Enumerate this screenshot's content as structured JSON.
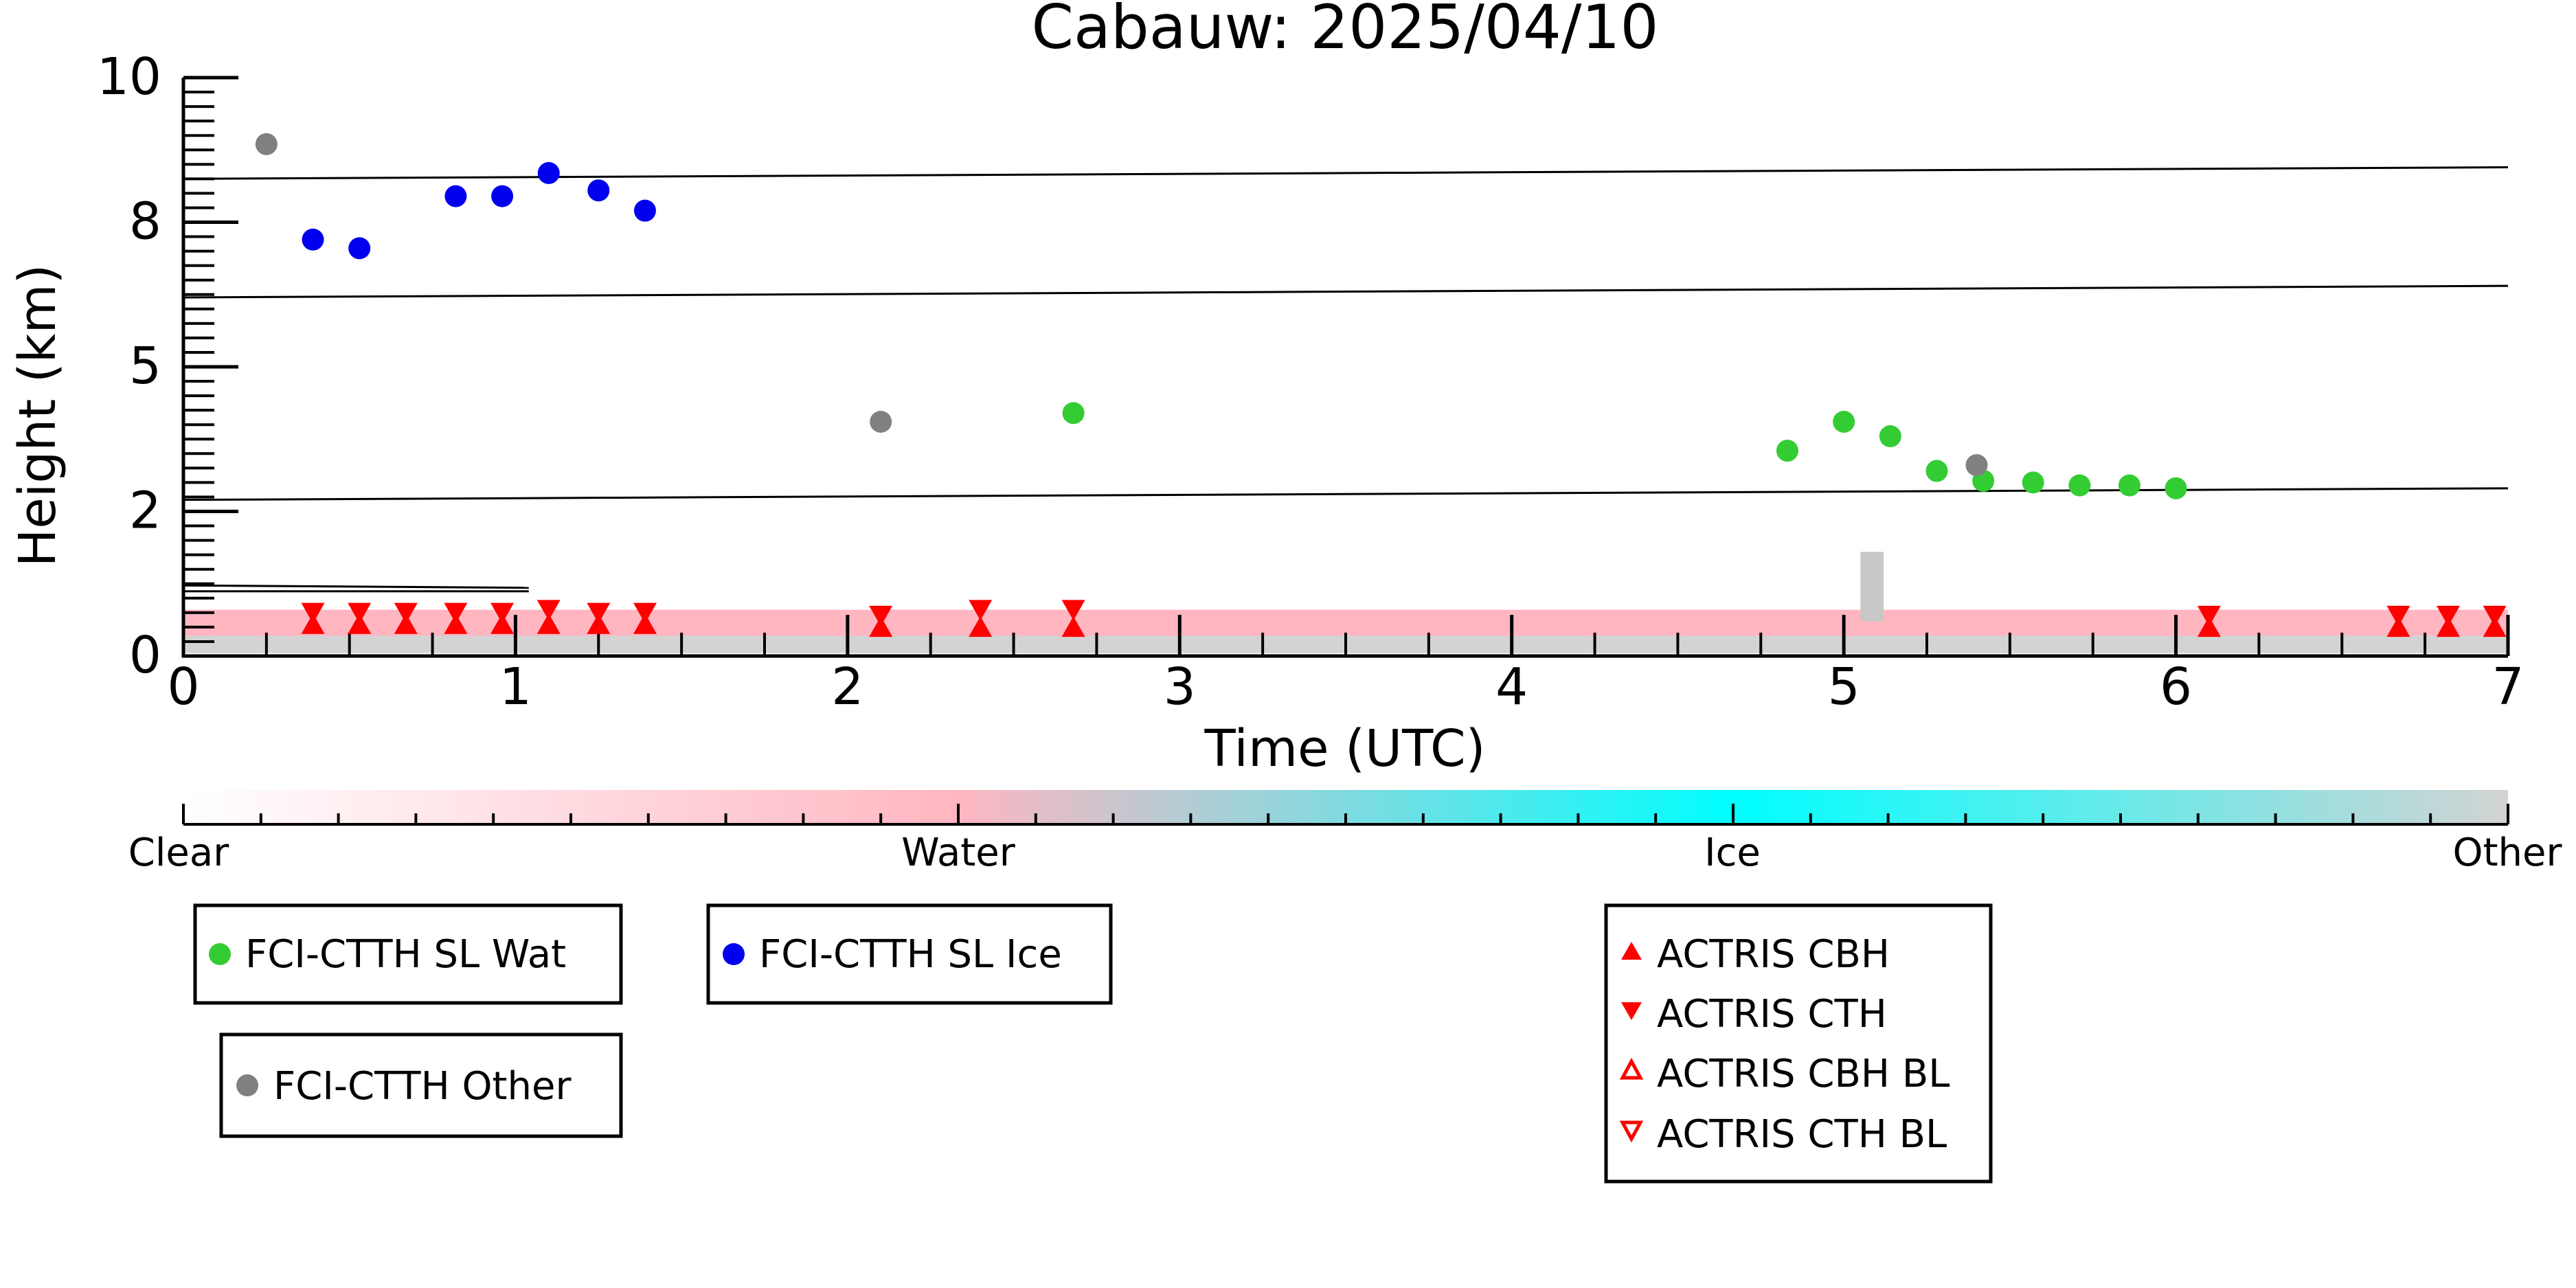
{
  "chart_data": {
    "type": "scatter",
    "title": "Cabauw: 2025/04/10",
    "xlabel": "Time (UTC)",
    "ylabel": "Height (km)",
    "xlim": [
      0,
      7
    ],
    "ylim": [
      0,
      10
    ],
    "x_ticks": [
      0,
      1,
      2,
      3,
      4,
      5,
      6,
      7
    ],
    "x_tick_labels": [
      "0",
      "1",
      "2",
      "3",
      "4",
      "5",
      "6",
      "7"
    ],
    "y_ticks": [
      0,
      2.5,
      5,
      7.5,
      10
    ],
    "y_tick_labels": [
      "0",
      "2",
      "5",
      "8",
      "10"
    ],
    "grid": false,
    "reference_lines": [
      {
        "x": [
          0,
          7
        ],
        "y": [
          8.25,
          8.45
        ]
      },
      {
        "x": [
          0,
          7
        ],
        "y": [
          6.2,
          6.4
        ]
      },
      {
        "x": [
          0,
          7
        ],
        "y": [
          2.7,
          2.9
        ]
      },
      {
        "x": [
          0,
          1.04
        ],
        "y": [
          1.22,
          1.18
        ]
      },
      {
        "x": [
          0,
          1.04
        ],
        "y": [
          1.12,
          1.12
        ]
      }
    ],
    "series": [
      {
        "name": "FCI-CTTH SL Wat",
        "marker": "circle",
        "color": "#33cc33",
        "x": [
          2.68,
          4.83,
          5.0,
          5.14,
          5.28,
          5.42,
          5.57,
          5.71,
          5.86,
          6.0
        ],
        "y": [
          4.2,
          3.55,
          4.05,
          3.8,
          3.2,
          3.03,
          3.0,
          2.95,
          2.95,
          2.9
        ]
      },
      {
        "name": "FCI-CTTH SL Ice",
        "marker": "circle",
        "color": "#0000ee",
        "x": [
          0.39,
          0.53,
          0.82,
          0.96,
          1.1,
          1.25,
          1.39
        ],
        "y": [
          7.2,
          7.05,
          7.95,
          7.95,
          8.35,
          8.05,
          7.7
        ]
      },
      {
        "name": "FCI-CTTH Other",
        "marker": "circle",
        "color": "#808080",
        "x": [
          0.25,
          2.1,
          5.4
        ],
        "y": [
          8.85,
          4.05,
          3.3
        ]
      },
      {
        "name": "ACTRIS CBH",
        "marker": "triangle-up",
        "color": "#ff0000",
        "x": [
          0.39,
          0.53,
          0.67,
          0.82,
          0.96,
          1.1,
          1.25,
          1.39,
          2.1,
          2.4,
          2.68,
          6.1,
          6.67,
          6.82,
          6.96
        ],
        "y": [
          0.5,
          0.5,
          0.5,
          0.5,
          0.5,
          0.5,
          0.5,
          0.5,
          0.45,
          0.45,
          0.45,
          0.45,
          0.45,
          0.45,
          0.45
        ]
      },
      {
        "name": "ACTRIS CTH",
        "marker": "triangle-down",
        "color": "#ff0000",
        "x": [
          0.39,
          0.53,
          0.67,
          0.82,
          0.96,
          1.1,
          1.25,
          1.39,
          2.1,
          2.4,
          2.68,
          6.1,
          6.67,
          6.82,
          6.96
        ],
        "y": [
          0.8,
          0.8,
          0.8,
          0.8,
          0.8,
          0.85,
          0.8,
          0.8,
          0.75,
          0.85,
          0.85,
          0.75,
          0.75,
          0.75,
          0.75
        ]
      },
      {
        "name": "ACTRIS CBH BL",
        "marker": "triangle-up-open",
        "color": "#ff0000",
        "x": [],
        "y": []
      },
      {
        "name": "ACTRIS CTH BL",
        "marker": "triangle-down-open",
        "color": "#ff0000",
        "x": [],
        "y": []
      }
    ],
    "background_layers": {
      "water_band": {
        "color": "#ffb6c1",
        "x": [
          0,
          7
        ],
        "y": [
          0.35,
          0.8
        ]
      },
      "other_band": {
        "color": "#d3d3d3",
        "x": [
          0,
          7
        ],
        "y": [
          0.05,
          0.35
        ]
      },
      "other_column": {
        "color": "#c8c8c8",
        "x": [
          5.05,
          5.12
        ],
        "y": [
          0.6,
          1.8
        ]
      }
    },
    "colorbar": {
      "labels": [
        "Clear",
        "Water",
        "Ice",
        "Other"
      ],
      "colors": [
        "#ffffff",
        "#ffb6c1",
        "#00ffff",
        "#d3d3d3"
      ]
    }
  },
  "legends": {
    "wat": "FCI-CTTH SL Wat",
    "ice": "FCI-CTTH SL Ice",
    "other": "FCI-CTTH Other",
    "cbh": "ACTRIS CBH",
    "cth": "ACTRIS CTH",
    "cbh_bl": "ACTRIS CBH BL",
    "cth_bl": "ACTRIS CTH BL"
  }
}
